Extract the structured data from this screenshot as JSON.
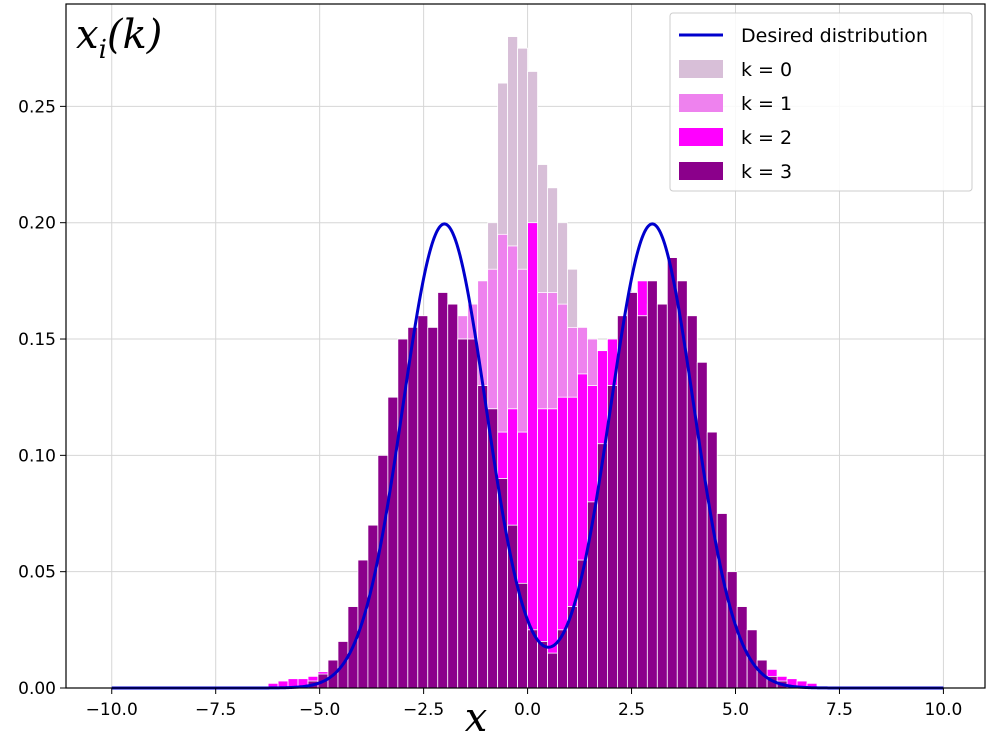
{
  "chart_data": {
    "type": "bar",
    "title": "",
    "corner_label": "x_i(k)",
    "xlabel": "x",
    "ylabel": "",
    "xlim": [
      -11.1,
      11.0
    ],
    "ylim": [
      0.0,
      0.294
    ],
    "xticks": [
      -10.0,
      -7.5,
      -5.0,
      -2.5,
      0.0,
      2.5,
      5.0,
      7.5,
      10.0
    ],
    "xtick_labels": [
      "−10.0",
      "−7.5",
      "−5.0",
      "−2.5",
      "0.0",
      "2.5",
      "5.0",
      "7.5",
      "10.0"
    ],
    "yticks": [
      0.0,
      0.05,
      0.1,
      0.15,
      0.2,
      0.25
    ],
    "ytick_labels": [
      "0.00",
      "0.05",
      "0.10",
      "0.15",
      "0.20",
      "0.25"
    ],
    "grid": true,
    "legend_position": "top-right",
    "bin_width": 0.24,
    "histograms": [
      {
        "name": "k = 0",
        "color": "#d8bfd8",
        "bins": [
          [
            -3.6,
            0.005
          ],
          [
            -3.36,
            0.01
          ],
          [
            -3.12,
            0.02
          ],
          [
            -2.88,
            0.03
          ],
          [
            -2.64,
            0.04
          ],
          [
            -2.4,
            0.06
          ],
          [
            -2.16,
            0.08
          ],
          [
            -1.92,
            0.1
          ],
          [
            -1.68,
            0.12
          ],
          [
            -1.44,
            0.145
          ],
          [
            -1.2,
            0.17
          ],
          [
            -0.96,
            0.2
          ],
          [
            -0.72,
            0.26
          ],
          [
            -0.48,
            0.28
          ],
          [
            -0.24,
            0.275
          ],
          [
            0.0,
            0.265
          ],
          [
            0.24,
            0.225
          ],
          [
            0.48,
            0.215
          ],
          [
            0.72,
            0.2
          ],
          [
            0.96,
            0.18
          ],
          [
            1.2,
            0.15
          ],
          [
            1.44,
            0.12
          ],
          [
            1.68,
            0.09
          ],
          [
            1.92,
            0.06
          ],
          [
            2.16,
            0.04
          ],
          [
            2.4,
            0.025
          ],
          [
            2.64,
            0.015
          ],
          [
            2.88,
            0.008
          ],
          [
            3.12,
            0.004
          ]
        ]
      },
      {
        "name": "k = 1",
        "color": "#ee82ee",
        "bins": [
          [
            -4.8,
            0.005
          ],
          [
            -4.56,
            0.01
          ],
          [
            -4.32,
            0.02
          ],
          [
            -4.08,
            0.03
          ],
          [
            -3.84,
            0.05
          ],
          [
            -3.6,
            0.07
          ],
          [
            -3.36,
            0.09
          ],
          [
            -3.12,
            0.11
          ],
          [
            -2.88,
            0.12
          ],
          [
            -2.64,
            0.13
          ],
          [
            -2.4,
            0.14
          ],
          [
            -2.16,
            0.15
          ],
          [
            -1.92,
            0.155
          ],
          [
            -1.68,
            0.16
          ],
          [
            -1.44,
            0.165
          ],
          [
            -1.2,
            0.175
          ],
          [
            -0.96,
            0.18
          ],
          [
            -0.72,
            0.195
          ],
          [
            -0.48,
            0.19
          ],
          [
            -0.24,
            0.18
          ],
          [
            0.0,
            0.175
          ],
          [
            0.24,
            0.17
          ],
          [
            0.48,
            0.17
          ],
          [
            0.72,
            0.165
          ],
          [
            0.96,
            0.155
          ],
          [
            1.2,
            0.155
          ],
          [
            1.44,
            0.15
          ],
          [
            1.68,
            0.145
          ],
          [
            1.92,
            0.14
          ],
          [
            2.16,
            0.13
          ],
          [
            2.4,
            0.125
          ],
          [
            2.64,
            0.11
          ],
          [
            2.88,
            0.1
          ],
          [
            3.12,
            0.08
          ],
          [
            3.36,
            0.06
          ],
          [
            3.6,
            0.045
          ],
          [
            3.84,
            0.03
          ],
          [
            4.08,
            0.02
          ],
          [
            4.32,
            0.012
          ],
          [
            4.56,
            0.006
          ]
        ]
      },
      {
        "name": "k = 2",
        "color": "#ff00ff",
        "bins": [
          [
            -6.24,
            0.002
          ],
          [
            -6.0,
            0.003
          ],
          [
            -5.76,
            0.004
          ],
          [
            -5.52,
            0.004
          ],
          [
            -5.28,
            0.005
          ],
          [
            -5.04,
            0.007
          ],
          [
            -4.8,
            0.012
          ],
          [
            -4.56,
            0.02
          ],
          [
            -4.32,
            0.03
          ],
          [
            -4.08,
            0.045
          ],
          [
            -3.84,
            0.06
          ],
          [
            -3.6,
            0.08
          ],
          [
            -3.36,
            0.1
          ],
          [
            -3.12,
            0.115
          ],
          [
            -2.88,
            0.13
          ],
          [
            -2.64,
            0.14
          ],
          [
            -2.4,
            0.14
          ],
          [
            -2.16,
            0.145
          ],
          [
            -1.92,
            0.14
          ],
          [
            -1.68,
            0.15
          ],
          [
            -1.44,
            0.14
          ],
          [
            -1.2,
            0.13
          ],
          [
            -0.96,
            0.12
          ],
          [
            -0.72,
            0.11
          ],
          [
            -0.48,
            0.12
          ],
          [
            -0.24,
            0.11
          ],
          [
            0.0,
            0.2
          ],
          [
            0.24,
            0.12
          ],
          [
            0.48,
            0.12
          ],
          [
            0.72,
            0.125
          ],
          [
            0.96,
            0.125
          ],
          [
            1.2,
            0.135
          ],
          [
            1.44,
            0.13
          ],
          [
            1.68,
            0.145
          ],
          [
            1.92,
            0.15
          ],
          [
            2.16,
            0.155
          ],
          [
            2.4,
            0.16
          ],
          [
            2.64,
            0.175
          ],
          [
            2.88,
            0.165
          ],
          [
            3.12,
            0.16
          ],
          [
            3.36,
            0.155
          ],
          [
            3.6,
            0.145
          ],
          [
            3.84,
            0.125
          ],
          [
            4.08,
            0.1
          ],
          [
            4.32,
            0.08
          ],
          [
            4.56,
            0.06
          ],
          [
            4.8,
            0.045
          ],
          [
            5.04,
            0.03
          ],
          [
            5.28,
            0.02
          ],
          [
            5.52,
            0.012
          ],
          [
            5.76,
            0.008
          ],
          [
            6.0,
            0.005
          ],
          [
            6.24,
            0.004
          ],
          [
            6.48,
            0.003
          ],
          [
            6.72,
            0.002
          ]
        ]
      },
      {
        "name": "k = 3",
        "color": "#8b008b",
        "bins": [
          [
            -5.28,
            0.003
          ],
          [
            -5.04,
            0.006
          ],
          [
            -4.8,
            0.012
          ],
          [
            -4.56,
            0.02
          ],
          [
            -4.32,
            0.035
          ],
          [
            -4.08,
            0.055
          ],
          [
            -3.84,
            0.07
          ],
          [
            -3.6,
            0.1
          ],
          [
            -3.36,
            0.125
          ],
          [
            -3.12,
            0.15
          ],
          [
            -2.88,
            0.155
          ],
          [
            -2.64,
            0.16
          ],
          [
            -2.4,
            0.155
          ],
          [
            -2.16,
            0.17
          ],
          [
            -1.92,
            0.165
          ],
          [
            -1.68,
            0.15
          ],
          [
            -1.44,
            0.15
          ],
          [
            -1.2,
            0.13
          ],
          [
            -0.96,
            0.12
          ],
          [
            -0.72,
            0.09
          ],
          [
            -0.48,
            0.07
          ],
          [
            -0.24,
            0.045
          ],
          [
            0.0,
            0.025
          ],
          [
            0.24,
            0.02
          ],
          [
            0.48,
            0.015
          ],
          [
            0.72,
            0.025
          ],
          [
            0.96,
            0.035
          ],
          [
            1.2,
            0.055
          ],
          [
            1.44,
            0.08
          ],
          [
            1.68,
            0.105
          ],
          [
            1.92,
            0.13
          ],
          [
            2.16,
            0.16
          ],
          [
            2.4,
            0.17
          ],
          [
            2.64,
            0.16
          ],
          [
            2.88,
            0.175
          ],
          [
            3.12,
            0.165
          ],
          [
            3.36,
            0.185
          ],
          [
            3.6,
            0.175
          ],
          [
            3.84,
            0.16
          ],
          [
            4.08,
            0.14
          ],
          [
            4.32,
            0.11
          ],
          [
            4.56,
            0.075
          ],
          [
            4.8,
            0.05
          ],
          [
            5.04,
            0.035
          ],
          [
            5.28,
            0.025
          ],
          [
            5.52,
            0.012
          ],
          [
            5.76,
            0.005
          ],
          [
            6.0,
            0.003
          ]
        ]
      }
    ],
    "curve": {
      "name": "Desired distribution",
      "color": "#0000cd",
      "x_range": [
        -10.0,
        10.0
      ],
      "components": [
        {
          "weight": 0.5,
          "mean": -2.0,
          "std": 1.0
        },
        {
          "weight": 0.5,
          "mean": 3.0,
          "std": 1.0
        }
      ]
    }
  }
}
